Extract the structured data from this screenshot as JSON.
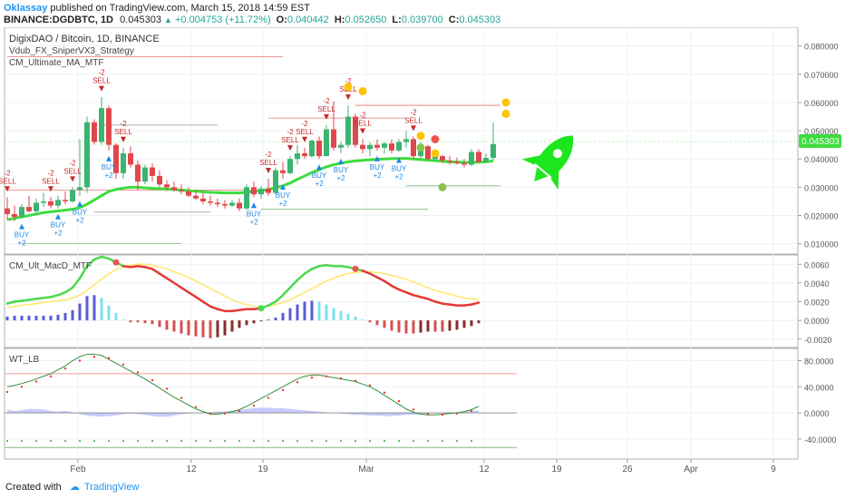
{
  "header": {
    "author": "Oklassay",
    "published": "published on TradingView.com, March 15, 2018 14:59 EST",
    "symbol": "BINANCE:DGDBTC, 1D",
    "last": "0.045303",
    "change": "+0.004753 (+11.72%)",
    "o_label": "O:",
    "o": "0.040442",
    "h_label": "H:",
    "h": "0.052650",
    "l_label": "L:",
    "l": "0.039700",
    "c_label": "C:",
    "c": "0.045303"
  },
  "panels": {
    "main": {
      "title": "DigixDAO / Bitcoin, 1D, BINANCE",
      "ind1": "Vdub_FX_SniperVX3_Strategy",
      "ind2": "CM_Ultimate_MA_MTF",
      "price_badge": "0.045303"
    },
    "macd": {
      "title": "CM_Ult_MacD_MTF"
    },
    "wt": {
      "title": "WT_LB"
    }
  },
  "xaxis": {
    "ticks": [
      "Feb",
      "12",
      "19",
      "Mar",
      "12",
      "19",
      "26",
      "Apr",
      "9"
    ]
  },
  "footer": {
    "created": "Created with",
    "brand": "TradingView"
  },
  "colors": {
    "up": "#26a69a",
    "bull_candle": "#3cb371",
    "bear_candle": "#e0474c",
    "ma_green": "#3ddc3d",
    "sell": "#c62828",
    "buy": "#1e88e5",
    "rocket": "#1ee61e",
    "accent": "#2196f3"
  },
  "chart_data": [
    {
      "type": "candlestick",
      "title": "DigixDAO / Bitcoin, 1D, BINANCE",
      "ylim": [
        0.007,
        0.086
      ],
      "yticks": [
        0.01,
        0.02,
        0.03,
        0.04,
        0.05,
        0.06,
        0.07,
        0.08
      ],
      "ytick_labels": [
        "0.010000",
        "0.020000",
        "0.030000",
        "0.040000",
        "0.050000",
        "0.060000",
        "0.070000",
        "0.080000"
      ],
      "last_price": 0.045303,
      "ohlc": [
        [
          0.0225,
          0.0265,
          0.0185,
          0.0205
        ],
        [
          0.0205,
          0.0235,
          0.018,
          0.0195
        ],
        [
          0.0195,
          0.024,
          0.019,
          0.023
        ],
        [
          0.023,
          0.027,
          0.021,
          0.0215
        ],
        [
          0.0215,
          0.026,
          0.02,
          0.0245
        ],
        [
          0.0245,
          0.028,
          0.023,
          0.025
        ],
        [
          0.025,
          0.0265,
          0.0225,
          0.0235
        ],
        [
          0.0235,
          0.027,
          0.0225,
          0.0255
        ],
        [
          0.0255,
          0.0285,
          0.024,
          0.025
        ],
        [
          0.025,
          0.03,
          0.0245,
          0.029
        ],
        [
          0.029,
          0.047,
          0.027,
          0.03
        ],
        [
          0.03,
          0.055,
          0.028,
          0.053
        ],
        [
          0.053,
          0.054,
          0.045,
          0.046
        ],
        [
          0.046,
          0.062,
          0.045,
          0.058
        ],
        [
          0.058,
          0.059,
          0.043,
          0.045
        ],
        [
          0.045,
          0.0455,
          0.033,
          0.035
        ],
        [
          0.035,
          0.044,
          0.033,
          0.042
        ],
        [
          0.042,
          0.0445,
          0.037,
          0.038
        ],
        [
          0.038,
          0.0395,
          0.029,
          0.032
        ],
        [
          0.032,
          0.038,
          0.031,
          0.037
        ],
        [
          0.037,
          0.0385,
          0.032,
          0.034
        ],
        [
          0.034,
          0.036,
          0.03,
          0.031
        ],
        [
          0.031,
          0.0325,
          0.029,
          0.03
        ],
        [
          0.03,
          0.032,
          0.0285,
          0.029
        ],
        [
          0.029,
          0.031,
          0.0275,
          0.0285
        ],
        [
          0.0285,
          0.03,
          0.0265,
          0.027
        ],
        [
          0.027,
          0.029,
          0.0255,
          0.026
        ],
        [
          0.026,
          0.028,
          0.024,
          0.025
        ],
        [
          0.025,
          0.027,
          0.0235,
          0.0245
        ],
        [
          0.0245,
          0.026,
          0.023,
          0.024
        ],
        [
          0.024,
          0.0255,
          0.0225,
          0.0235
        ],
        [
          0.0235,
          0.0255,
          0.023,
          0.0245
        ],
        [
          0.0245,
          0.026,
          0.0215,
          0.0225
        ],
        [
          0.0225,
          0.031,
          0.022,
          0.03
        ],
        [
          0.03,
          0.032,
          0.0265,
          0.0275
        ],
        [
          0.0275,
          0.0305,
          0.026,
          0.0295
        ],
        [
          0.0295,
          0.033,
          0.027,
          0.028
        ],
        [
          0.028,
          0.037,
          0.0275,
          0.036
        ],
        [
          0.036,
          0.039,
          0.033,
          0.035
        ],
        [
          0.035,
          0.041,
          0.0345,
          0.04
        ],
        [
          0.04,
          0.045,
          0.038,
          0.042
        ],
        [
          0.042,
          0.044,
          0.04,
          0.041
        ],
        [
          0.041,
          0.047,
          0.0405,
          0.0465
        ],
        [
          0.0465,
          0.048,
          0.04,
          0.041
        ],
        [
          0.041,
          0.052,
          0.041,
          0.0505
        ],
        [
          0.0505,
          0.0605,
          0.043,
          0.044
        ],
        [
          0.044,
          0.046,
          0.042,
          0.045
        ],
        [
          0.045,
          0.059,
          0.044,
          0.055
        ],
        [
          0.055,
          0.056,
          0.044,
          0.045
        ],
        [
          0.045,
          0.047,
          0.042,
          0.0435
        ],
        [
          0.0435,
          0.046,
          0.041,
          0.045
        ],
        [
          0.045,
          0.047,
          0.043,
          0.044
        ],
        [
          0.044,
          0.046,
          0.042,
          0.0455
        ],
        [
          0.0455,
          0.047,
          0.042,
          0.043
        ],
        [
          0.043,
          0.047,
          0.0425,
          0.046
        ],
        [
          0.046,
          0.05,
          0.044,
          0.047
        ],
        [
          0.047,
          0.048,
          0.04,
          0.041
        ],
        [
          0.041,
          0.046,
          0.04,
          0.0445
        ],
        [
          0.0445,
          0.045,
          0.0395,
          0.04
        ],
        [
          0.04,
          0.042,
          0.039,
          0.041
        ],
        [
          0.041,
          0.0415,
          0.0385,
          0.0395
        ],
        [
          0.0395,
          0.041,
          0.038,
          0.039
        ],
        [
          0.039,
          0.0405,
          0.038,
          0.0385
        ],
        [
          0.0385,
          0.04,
          0.037,
          0.038
        ],
        [
          0.038,
          0.0435,
          0.0375,
          0.0425
        ],
        [
          0.0425,
          0.0435,
          0.0385,
          0.039
        ],
        [
          0.039,
          0.042,
          0.0385,
          0.0404
        ],
        [
          0.0404,
          0.0527,
          0.0397,
          0.0453
        ]
      ],
      "ma": [
        0.0185,
        0.019,
        0.0195,
        0.02,
        0.0205,
        0.021,
        0.0213,
        0.0216,
        0.0219,
        0.0222,
        0.0228,
        0.024,
        0.0255,
        0.027,
        0.0285,
        0.0292,
        0.0297,
        0.03,
        0.03,
        0.0298,
        0.0296,
        0.0295,
        0.0294,
        0.0292,
        0.029,
        0.0288,
        0.0286,
        0.0284,
        0.0282,
        0.0281,
        0.028,
        0.028,
        0.028,
        0.0282,
        0.0285,
        0.0288,
        0.0292,
        0.0298,
        0.0305,
        0.0315,
        0.0328,
        0.034,
        0.0352,
        0.0362,
        0.0372,
        0.038,
        0.0385,
        0.039,
        0.0393,
        0.0395,
        0.0397,
        0.0399,
        0.04,
        0.0401,
        0.0402,
        0.0402,
        0.04,
        0.0398,
        0.0396,
        0.0394,
        0.0392,
        0.039,
        0.0389,
        0.0388,
        0.0388,
        0.0389,
        0.039,
        0.0393
      ],
      "signals": [
        {
          "bar": 0,
          "type": "sell",
          "label": "-2",
          "label2": "SELL"
        },
        {
          "bar": 6,
          "type": "sell",
          "label": "-2",
          "label2": "SELL"
        },
        {
          "bar": 9,
          "type": "sell",
          "label": "-2",
          "label2": "SELL"
        },
        {
          "bar": 13,
          "type": "sell",
          "label": "-2",
          "label2": "SELL"
        },
        {
          "bar": 16,
          "type": "sell",
          "label": "-2",
          "label2": "SELL"
        },
        {
          "bar": 36,
          "type": "sell",
          "label": "-2",
          "label2": "SELL"
        },
        {
          "bar": 39,
          "type": "sell",
          "label": "-2",
          "label2": "SELL"
        },
        {
          "bar": 41,
          "type": "sell",
          "label": "-2",
          "label2": "SELL"
        },
        {
          "bar": 44,
          "type": "sell",
          "label": "-2",
          "label2": "SELL"
        },
        {
          "bar": 47,
          "type": "sell",
          "label": "-2",
          "label2": "SELL"
        },
        {
          "bar": 49,
          "type": "sell",
          "label": "-2",
          "label2": "SELL"
        },
        {
          "bar": 56,
          "type": "sell",
          "label": "-2",
          "label2": "SELL"
        },
        {
          "bar": 2,
          "type": "buy",
          "label": "BUY",
          "label2": "+2"
        },
        {
          "bar": 7,
          "type": "buy",
          "label": "BUY",
          "label2": "+2"
        },
        {
          "bar": 10,
          "type": "buy",
          "label": "BUY",
          "label2": "+2"
        },
        {
          "bar": 14,
          "type": "buy",
          "label": "BUY",
          "label2": "+2"
        },
        {
          "bar": 34,
          "type": "buy",
          "label": "BUY",
          "label2": "+2"
        },
        {
          "bar": 38,
          "type": "buy",
          "label": "BUY",
          "label2": "+2"
        },
        {
          "bar": 43,
          "type": "buy",
          "label": "BUY",
          "label2": "+2"
        },
        {
          "bar": 46,
          "type": "buy",
          "label": "BUY",
          "label2": "+2"
        },
        {
          "bar": 51,
          "type": "buy",
          "label": "BUY",
          "label2": "+2"
        },
        {
          "bar": 54,
          "type": "buy",
          "label": "BUY",
          "label2": "+2"
        }
      ]
    },
    {
      "type": "line",
      "title": "CM_Ult_MacD_MTF",
      "ylim": [
        -0.0027,
        0.0068
      ],
      "yticks": [
        -0.002,
        0.0,
        0.002,
        0.004,
        0.006
      ],
      "ytick_labels": [
        "-0.0020",
        "0.0000",
        "0.0020",
        "0.0040",
        "0.0060"
      ],
      "macd": [
        0.0018,
        0.002,
        0.0021,
        0.0022,
        0.0023,
        0.0024,
        0.0025,
        0.0027,
        0.003,
        0.0035,
        0.0045,
        0.0058,
        0.0065,
        0.0068,
        0.0066,
        0.0062,
        0.0058,
        0.0057,
        0.0058,
        0.0057,
        0.0055,
        0.005,
        0.0045,
        0.004,
        0.0035,
        0.003,
        0.0025,
        0.002,
        0.0015,
        0.0012,
        0.001,
        0.001,
        0.0011,
        0.0012,
        0.0012,
        0.0013,
        0.0016,
        0.002,
        0.0027,
        0.0035,
        0.0043,
        0.005,
        0.0055,
        0.0058,
        0.0059,
        0.0058,
        0.0058,
        0.0057,
        0.0055,
        0.0053,
        0.005,
        0.0046,
        0.0042,
        0.0037,
        0.0033,
        0.003,
        0.0027,
        0.0025,
        0.0023,
        0.002,
        0.0018,
        0.0017,
        0.0016,
        0.0016,
        0.0017,
        0.0019
      ],
      "signal": [
        0.0014,
        0.0015,
        0.0016,
        0.0017,
        0.0018,
        0.0019,
        0.002,
        0.0021,
        0.0022,
        0.0024,
        0.0027,
        0.0032,
        0.0038,
        0.0044,
        0.005,
        0.0054,
        0.0057,
        0.0059,
        0.006,
        0.006,
        0.0059,
        0.0057,
        0.0055,
        0.0052,
        0.0049,
        0.0046,
        0.0042,
        0.0038,
        0.0034,
        0.003,
        0.0026,
        0.0022,
        0.0019,
        0.0017,
        0.0015,
        0.0014,
        0.0015,
        0.0017,
        0.0019,
        0.0022,
        0.0026,
        0.003,
        0.0034,
        0.0038,
        0.0042,
        0.0045,
        0.0048,
        0.005,
        0.0051,
        0.0052,
        0.0052,
        0.0051,
        0.005,
        0.0048,
        0.0046,
        0.0044,
        0.0041,
        0.0038,
        0.0035,
        0.0032,
        0.003,
        0.0028,
        0.0026,
        0.0024,
        0.0023,
        0.0022
      ],
      "histogram": [
        0.0004,
        0.0005,
        0.0005,
        0.0005,
        0.0005,
        0.0005,
        0.0005,
        0.0006,
        0.0008,
        0.0011,
        0.0018,
        0.0026,
        0.0027,
        0.0024,
        0.0016,
        0.0008,
        0.0001,
        -0.0002,
        -0.0002,
        -0.0003,
        -0.0004,
        -0.0007,
        -0.001,
        -0.0012,
        -0.0014,
        -0.0016,
        -0.0017,
        -0.0018,
        -0.0019,
        -0.0018,
        -0.0016,
        -0.0012,
        -0.0008,
        -0.0005,
        -0.0003,
        -0.0001,
        0.0001,
        0.0003,
        0.0008,
        0.0013,
        0.0017,
        0.002,
        0.0021,
        0.002,
        0.0017,
        0.0013,
        0.001,
        0.0007,
        0.0004,
        0.0001,
        -0.0002,
        -0.0005,
        -0.0008,
        -0.0011,
        -0.0013,
        -0.0014,
        -0.0014,
        -0.0013,
        -0.0012,
        -0.0012,
        -0.0012,
        -0.0011,
        -0.001,
        -0.0008,
        -0.0006,
        -0.0003
      ],
      "cross_points": [
        {
          "bar": 15,
          "type": "bear"
        },
        {
          "bar": 35,
          "type": "bull"
        },
        {
          "bar": 48,
          "type": "bear"
        }
      ]
    },
    {
      "type": "line",
      "title": "WT_LB",
      "ylim": [
        -68,
        96
      ],
      "yticks": [
        -40,
        0,
        40,
        80
      ],
      "ytick_labels": [
        "-40.0000",
        "0.0000",
        "40.0000",
        "80.0000"
      ],
      "levels": {
        "overbought": 60,
        "oversold": -53
      },
      "wt1": [
        40,
        42,
        45,
        48,
        52,
        56,
        60,
        66,
        72,
        80,
        86,
        90,
        90,
        88,
        82,
        76,
        70,
        64,
        58,
        52,
        45,
        38,
        31,
        24,
        18,
        12,
        6,
        2,
        -2,
        -2,
        0,
        2,
        5,
        10,
        16,
        22,
        28,
        34,
        40,
        46,
        52,
        56,
        58,
        58,
        56,
        54,
        52,
        50,
        48,
        44,
        40,
        34,
        27,
        20,
        13,
        6,
        1,
        -2,
        -3,
        -3,
        -2,
        -1,
        0,
        2,
        5,
        10
      ],
      "wt2": [
        32,
        36,
        40,
        44,
        48,
        52,
        56,
        62,
        68,
        74,
        80,
        84,
        86,
        86,
        84,
        80,
        74,
        68,
        62,
        56,
        50,
        44,
        37,
        30,
        23,
        16,
        9,
        3,
        -1,
        -2,
        -1,
        1,
        3,
        6,
        11,
        17,
        23,
        29,
        35,
        41,
        47,
        51,
        54,
        56,
        56,
        55,
        53,
        51,
        49,
        46,
        42,
        37,
        31,
        25,
        18,
        11,
        5,
        1,
        -2,
        -3,
        -3,
        -2,
        -1,
        1,
        3,
        6
      ],
      "cloud": [
        5,
        3,
        4,
        6,
        6,
        5,
        3,
        2,
        3,
        1,
        -2,
        -4,
        -5,
        -6,
        -5,
        -4,
        -2,
        -1,
        -2,
        -3,
        -5,
        -6,
        -6,
        -4,
        -2,
        -1,
        0,
        1,
        1,
        2,
        2,
        3,
        4,
        6,
        7,
        8,
        8,
        7,
        7,
        6,
        5,
        4,
        3,
        2,
        1,
        0,
        -1,
        -2,
        -3,
        -3,
        -4,
        -4,
        -5,
        -5,
        -4,
        -3,
        -3,
        -2,
        -1,
        0,
        0,
        0,
        1,
        2,
        3,
        4
      ]
    }
  ]
}
